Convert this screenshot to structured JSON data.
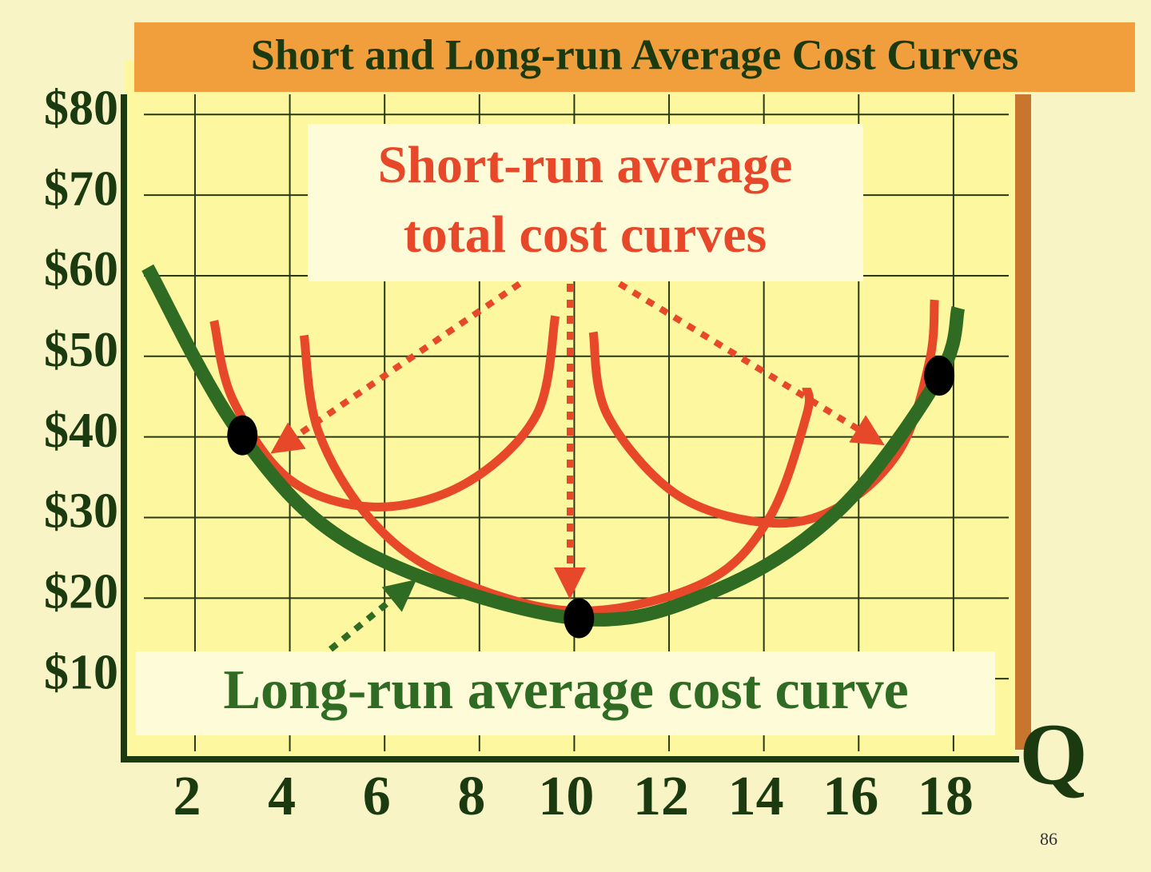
{
  "chart_data": {
    "type": "line",
    "title": "Short and Long-run Average Cost Curves",
    "x_label": "Q",
    "annotations": [
      "Short-run average",
      "total cost curves",
      "Long-run average cost curve"
    ],
    "xlim": [
      0.5,
      19.3
    ],
    "ylim": [
      0,
      83
    ],
    "xticks": [
      2,
      4,
      6,
      8,
      10,
      12,
      14,
      16,
      18
    ],
    "yticks": [
      {
        "value": 10,
        "label": "$10"
      },
      {
        "value": 20,
        "label": "$20"
      },
      {
        "value": 30,
        "label": "$30"
      },
      {
        "value": 40,
        "label": "$40"
      },
      {
        "value": 50,
        "label": "$50"
      },
      {
        "value": 60,
        "label": "$60"
      },
      {
        "value": 70,
        "label": "$70"
      },
      {
        "value": 80,
        "label": "$80"
      }
    ],
    "grid": true,
    "series": [
      {
        "color": "#2f6b22",
        "width": 17,
        "x": [
          1,
          3,
          5.5,
          10,
          13,
          15.6,
          17.7,
          18.1
        ],
        "values": [
          61,
          40,
          26,
          17.5,
          21,
          31,
          47.5,
          56
        ]
      },
      {
        "color": "#e8482a",
        "width": 11,
        "x": [
          2.4,
          2.8,
          4,
          5.8,
          7.7,
          9.2,
          9.6
        ],
        "values": [
          54.4,
          44.6,
          34.7,
          31.3,
          34.2,
          42.7,
          55
        ]
      },
      {
        "color": "#e8482a",
        "width": 11,
        "x": [
          4.3,
          4.6,
          5.7,
          7.3,
          10,
          12.7,
          14.1,
          14.9,
          14.9
        ],
        "values": [
          52.6,
          40.7,
          29.8,
          22.8,
          18.4,
          21.8,
          29.8,
          42.7,
          46.1
        ]
      },
      {
        "color": "#e8482a",
        "width": 11,
        "x": [
          10.4,
          10.7,
          12.2,
          14.2,
          15.7,
          16.9,
          17.5,
          17.6
        ],
        "values": [
          53,
          42.7,
          32.7,
          29.3,
          31.7,
          38.7,
          49.6,
          57
        ]
      }
    ],
    "points": {
      "color": "#000000",
      "x": [
        3,
        10.1,
        17.7
      ],
      "values": [
        40.2,
        17.5,
        47.6
      ]
    }
  },
  "page_number": "86"
}
